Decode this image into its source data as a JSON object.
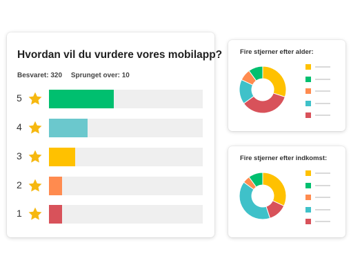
{
  "main": {
    "title": "Hvordan vil du vurdere vores mobilapp?",
    "answered": "Besvaret: 320",
    "skipped": "Sprunget over: 10",
    "ratings": [
      {
        "label": "5",
        "fraction": 0.42,
        "color": "#00bf6f"
      },
      {
        "label": "4",
        "fraction": 0.25,
        "color": "#6bc8cd"
      },
      {
        "label": "3",
        "fraction": 0.17,
        "color": "#ffc100"
      },
      {
        "label": "2",
        "fraction": 0.085,
        "color": "#ff8b4f"
      },
      {
        "label": "1",
        "fraction": 0.085,
        "color": "#d8525a"
      }
    ],
    "star_icon": "star-icon",
    "star_color": "#f6b810"
  },
  "age_card": {
    "title": "Fire stjerner efter alder:",
    "segments": [
      {
        "value": 30,
        "color": "#ffc100"
      },
      {
        "value": 35,
        "color": "#d8525a"
      },
      {
        "value": 17,
        "color": "#3fc1c9"
      },
      {
        "value": 8,
        "color": "#ff8b4f"
      },
      {
        "value": 10,
        "color": "#00bf6f"
      }
    ],
    "legend_colors": [
      "#ffc100",
      "#00bf6f",
      "#ff8b4f",
      "#3fc1c9",
      "#d8525a"
    ]
  },
  "income_card": {
    "title": "Fire stjerner efter indkomst:",
    "segments": [
      {
        "value": 32,
        "color": "#ffc100"
      },
      {
        "value": 13,
        "color": "#d8525a"
      },
      {
        "value": 40,
        "color": "#3fc1c9"
      },
      {
        "value": 5,
        "color": "#ff8b4f"
      },
      {
        "value": 10,
        "color": "#00bf6f"
      }
    ],
    "legend_colors": [
      "#ffc100",
      "#00bf6f",
      "#ff8b4f",
      "#3fc1c9",
      "#d8525a"
    ]
  }
}
